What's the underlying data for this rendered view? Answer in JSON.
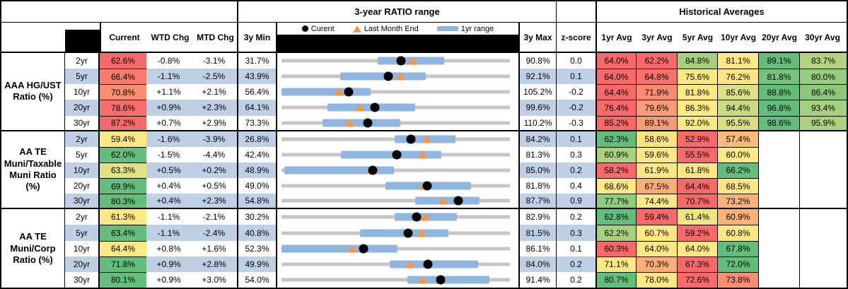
{
  "header": {
    "range_title": "3-year RATIO range",
    "historical_title": "Historical Averages",
    "value_cols": [
      "Current",
      "WTD Chg",
      "MTD Chg"
    ],
    "min_col": "3y Min",
    "max_col": "3y Max",
    "z_col": "z-score",
    "avg_cols": [
      "1yr Avg",
      "3yr Avg",
      "5yr Avg",
      "10yr Avg",
      "20yr Avg",
      "30yr Avg"
    ],
    "legend": {
      "current": "Curent",
      "last_month_end": "Last Month End",
      "range": "1yr range"
    }
  },
  "colors": {
    "stripe": "#BFD0E6",
    "bar_1yr": "#8FB5E1",
    "track": "#C6C6C6",
    "triangle_orange": "#F79646",
    "dot_black": "#000000",
    "heat_red": "#F8696B",
    "heat_yellow": "#FFE984",
    "heat_green": "#63BE7B"
  },
  "groups": [
    {
      "label": [
        "AAA HG/UST",
        "Ratio (%)"
      ],
      "rows": [
        {
          "tenor": "2yr",
          "current": "62.6%",
          "current_color": "#F8696B",
          "current_n": 62.6,
          "wtd": "-0.8%",
          "mtd": "-3.1%",
          "min": "31.7%",
          "min_n": 31.7,
          "max": "90.8%",
          "max_n": 90.8,
          "z": "0.0",
          "lme_n": 65.7,
          "bar": [
            56.5,
            73.7
          ],
          "avgs": [
            {
              "v": "64.0%",
              "c": "#F8696B"
            },
            {
              "v": "62.2%",
              "c": "#F8696B"
            },
            {
              "v": "84.8%",
              "c": "#A6D07F"
            },
            {
              "v": "81.1%",
              "c": "#FFE984"
            },
            {
              "v": "89.1%",
              "c": "#63BE7B"
            },
            {
              "v": "83.7%",
              "c": "#B5D47F"
            }
          ]
        },
        {
          "tenor": "5yr",
          "current": "66.4%",
          "current_color": "#F87B6E",
          "current_n": 66.4,
          "wtd": "-1.1%",
          "mtd": "-2.5%",
          "min": "43.9%",
          "min_n": 43.9,
          "max": "92.1%",
          "max_n": 92.1,
          "z": "0.1",
          "lme_n": 68.9,
          "bar": [
            56.3,
            74.3
          ],
          "avgs": [
            {
              "v": "64.0%",
              "c": "#F8696B"
            },
            {
              "v": "64.8%",
              "c": "#F9706D"
            },
            {
              "v": "75.6%",
              "c": "#FFE884"
            },
            {
              "v": "76.2%",
              "c": "#FEE483"
            },
            {
              "v": "81.8%",
              "c": "#73C37C"
            },
            {
              "v": "80.0%",
              "c": "#96CC7E"
            }
          ]
        },
        {
          "tenor": "10yr",
          "current": "70.8%",
          "current_color": "#F98E72",
          "current_n": 70.8,
          "wtd": "+1.1%",
          "mtd": "+2.1%",
          "min": "56.4%",
          "min_n": 56.4,
          "max": "105.2%",
          "max_n": 105.2,
          "z": "-0.2",
          "lme_n": 68.7,
          "bar": [
            56.4,
            75.4
          ],
          "avgs": [
            {
              "v": "64.4%",
              "c": "#F8696B"
            },
            {
              "v": "71.9%",
              "c": "#FA8B71"
            },
            {
              "v": "81.8%",
              "c": "#FFE984"
            },
            {
              "v": "85.6%",
              "c": "#DCE181"
            },
            {
              "v": "88.8%",
              "c": "#63BE7B"
            },
            {
              "v": "86.4%",
              "c": "#8CC97D"
            }
          ]
        },
        {
          "tenor": "20yr",
          "current": "78.6%",
          "current_color": "#F86E6C",
          "current_n": 78.6,
          "wtd": "+0.9%",
          "mtd": "+2.3%",
          "min": "64.1%",
          "min_n": 64.1,
          "max": "99.6%",
          "max_n": 99.6,
          "z": "-0.2",
          "lme_n": 76.3,
          "bar": [
            71.2,
            84.9
          ],
          "avgs": [
            {
              "v": "76.4%",
              "c": "#F8696B"
            },
            {
              "v": "79.6%",
              "c": "#FA9C75"
            },
            {
              "v": "86.3%",
              "c": "#FFE984"
            },
            {
              "v": "94.4%",
              "c": "#C9DB80"
            },
            {
              "v": "96.8%",
              "c": "#63BE7B"
            },
            {
              "v": "93.4%",
              "c": "#A5D07F"
            }
          ]
        },
        {
          "tenor": "30yr",
          "current": "87.2%",
          "current_color": "#F8696B",
          "current_n": 87.2,
          "wtd": "+0.7%",
          "mtd": "+2.9%",
          "min": "73.3%",
          "min_n": 73.3,
          "max": "110.2%",
          "max_n": 110.2,
          "z": "-0.3",
          "lme_n": 84.3,
          "bar": [
            79.9,
            92.5
          ],
          "avgs": [
            {
              "v": "85.2%",
              "c": "#F8696B"
            },
            {
              "v": "89.1%",
              "c": "#FA9B75"
            },
            {
              "v": "92.0%",
              "c": "#FFE984"
            },
            {
              "v": "95.5%",
              "c": "#DAE081"
            },
            {
              "v": "98.6%",
              "c": "#63BE7B"
            },
            {
              "v": "95.9%",
              "c": "#ACD27F"
            }
          ]
        }
      ]
    },
    {
      "label": [
        "AA TE",
        "Muni/Taxable",
        "Muni Ratio",
        "(%)"
      ],
      "rows": [
        {
          "tenor": "2yr",
          "current": "59.4%",
          "current_color": "#FFE783",
          "current_n": 59.4,
          "wtd": "-1.6%",
          "mtd": "-3.9%",
          "min": "26.8%",
          "min_n": 26.8,
          "max": "84.2%",
          "max_n": 84.2,
          "z": "0.1",
          "lme_n": 63.3,
          "bar": [
            55.2,
            70.6
          ],
          "avgs": [
            {
              "v": "62.3%",
              "c": "#63BE7B"
            },
            {
              "v": "58.6%",
              "c": "#FFE383"
            },
            {
              "v": "52.9%",
              "c": "#F8696B"
            },
            {
              "v": "57.4%",
              "c": "#FCBA7A"
            },
            {
              "v": "",
              "c": "#FFFFFF"
            },
            {
              "v": "",
              "c": "#FFFFFF"
            }
          ]
        },
        {
          "tenor": "5yr",
          "current": "62.0%",
          "current_color": "#63BE7B",
          "current_n": 62.0,
          "wtd": "-1.5%",
          "mtd": "-4.4%",
          "min": "42.4%",
          "min_n": 42.4,
          "max": "81.3%",
          "max_n": 81.3,
          "z": "0.3",
          "lme_n": 66.4,
          "bar": [
            52.5,
            69.6
          ],
          "avgs": [
            {
              "v": "60.9%",
              "c": "#ABD27F"
            },
            {
              "v": "59.6%",
              "c": "#FFE884"
            },
            {
              "v": "55.5%",
              "c": "#F8696B"
            },
            {
              "v": "60.0%",
              "c": "#FFE983"
            },
            {
              "v": "",
              "c": "#FFFFFF"
            },
            {
              "v": "",
              "c": "#FFFFFF"
            }
          ]
        },
        {
          "tenor": "10yr",
          "current": "63.3%",
          "current_color": "#E0E282",
          "current_n": 63.3,
          "wtd": "+0.5%",
          "mtd": "+0.2%",
          "min": "48.9%",
          "min_n": 48.9,
          "max": "85.0%",
          "max_n": 85.0,
          "z": "0.2",
          "lme_n": 63.1,
          "bar": [
            49.4,
            66.7
          ],
          "avgs": [
            {
              "v": "58.2%",
              "c": "#F8696B"
            },
            {
              "v": "61.9%",
              "c": "#FFE884"
            },
            {
              "v": "61.8%",
              "c": "#FEE783"
            },
            {
              "v": "66.2%",
              "c": "#63BE7B"
            },
            {
              "v": "",
              "c": "#FFFFFF"
            },
            {
              "v": "",
              "c": "#FFFFFF"
            }
          ]
        },
        {
          "tenor": "20yr",
          "current": "69.9%",
          "current_color": "#63BE7B",
          "current_n": 69.9,
          "wtd": "+0.4%",
          "mtd": "+0.5%",
          "min": "49.0%",
          "min_n": 49.0,
          "max": "81.8%",
          "max_n": 81.8,
          "z": "0.4",
          "lme_n": 69.4,
          "bar": [
            63.9,
            76.2
          ],
          "avgs": [
            {
              "v": "68.6%",
              "c": "#FFE883"
            },
            {
              "v": "67.5%",
              "c": "#FBAE78"
            },
            {
              "v": "64.4%",
              "c": "#F8696B"
            },
            {
              "v": "68.5%",
              "c": "#FEE583"
            },
            {
              "v": "",
              "c": "#FFFFFF"
            },
            {
              "v": "",
              "c": "#FFFFFF"
            }
          ]
        },
        {
          "tenor": "30yr",
          "current": "80.3%",
          "current_color": "#63BE7B",
          "current_n": 80.3,
          "wtd": "+0.4%",
          "mtd": "+2.3%",
          "min": "54.8%",
          "min_n": 54.8,
          "max": "87.7%",
          "max_n": 87.7,
          "z": "0.9",
          "lme_n": 78.0,
          "bar": [
            74.1,
            83.3
          ],
          "avgs": [
            {
              "v": "77.7%",
              "c": "#91CB7D"
            },
            {
              "v": "74.4%",
              "c": "#FFE884"
            },
            {
              "v": "70.7%",
              "c": "#F8696B"
            },
            {
              "v": "73.2%",
              "c": "#FBB179"
            },
            {
              "v": "",
              "c": "#FFFFFF"
            },
            {
              "v": "",
              "c": "#FFFFFF"
            }
          ]
        }
      ]
    },
    {
      "label": [
        "AA TE",
        "Muni/Corp",
        "Ratio (%)"
      ],
      "rows": [
        {
          "tenor": "2yr",
          "current": "61.3%",
          "current_color": "#FFE883",
          "current_n": 61.3,
          "wtd": "-1.1%",
          "mtd": "-2.1%",
          "min": "30.2%",
          "min_n": 30.2,
          "max": "82.9%",
          "max_n": 82.9,
          "z": "0.2",
          "lme_n": 63.4,
          "bar": [
            56.3,
            70.7
          ],
          "avgs": [
            {
              "v": "62.8%",
              "c": "#63BE7B"
            },
            {
              "v": "59.4%",
              "c": "#F8696B"
            },
            {
              "v": "61.4%",
              "c": "#EFE682"
            },
            {
              "v": "60.9%",
              "c": "#FBB177"
            },
            {
              "v": "",
              "c": "#FFFFFF"
            },
            {
              "v": "",
              "c": "#FFFFFF"
            }
          ]
        },
        {
          "tenor": "5yr",
          "current": "63.4%",
          "current_color": "#63BE7B",
          "current_n": 63.4,
          "wtd": "-1.1%",
          "mtd": "-2.4%",
          "min": "40.8%",
          "min_n": 40.8,
          "max": "81.5%",
          "max_n": 81.5,
          "z": "0.3",
          "lme_n": 65.8,
          "bar": [
            54.8,
            70.5
          ],
          "avgs": [
            {
              "v": "62.2%",
              "c": "#A8D17F"
            },
            {
              "v": "60.7%",
              "c": "#FFE883"
            },
            {
              "v": "59.2%",
              "c": "#F8696B"
            },
            {
              "v": "60.8%",
              "c": "#FEE683"
            },
            {
              "v": "",
              "c": "#FFFFFF"
            },
            {
              "v": "",
              "c": "#FFFFFF"
            }
          ]
        },
        {
          "tenor": "10yr",
          "current": "64.4%",
          "current_color": "#FFE984",
          "current_n": 64.4,
          "wtd": "+0.8%",
          "mtd": "+1.6%",
          "min": "52.3%",
          "min_n": 52.3,
          "max": "86.1%",
          "max_n": 86.1,
          "z": "0.1",
          "lme_n": 62.8,
          "bar": [
            52.3,
            69.5
          ],
          "avgs": [
            {
              "v": "60.3%",
              "c": "#F8696B"
            },
            {
              "v": "64.0%",
              "c": "#FFE884"
            },
            {
              "v": "64.0%",
              "c": "#FEE883"
            },
            {
              "v": "67.8%",
              "c": "#63BE7B"
            },
            {
              "v": "",
              "c": "#FFFFFF"
            },
            {
              "v": "",
              "c": "#FFFFFF"
            }
          ]
        },
        {
          "tenor": "20yr",
          "current": "71.8%",
          "current_color": "#63BE7B",
          "current_n": 71.8,
          "wtd": "+0.9%",
          "mtd": "+2.8%",
          "min": "49.9%",
          "min_n": 49.9,
          "max": "84.0%",
          "max_n": 84.0,
          "z": "0.2",
          "lme_n": 69.0,
          "bar": [
            66.1,
            79.2
          ],
          "avgs": [
            {
              "v": "71.1%",
              "c": "#FFE883"
            },
            {
              "v": "70.3%",
              "c": "#FBAE78"
            },
            {
              "v": "67.3%",
              "c": "#F8696B"
            },
            {
              "v": "72.0%",
              "c": "#63BE7B"
            },
            {
              "v": "",
              "c": "#FFFFFF"
            },
            {
              "v": "",
              "c": "#FFFFFF"
            }
          ]
        },
        {
          "tenor": "30yr",
          "current": "80.1%",
          "current_color": "#63BE7B",
          "current_n": 80.1,
          "wtd": "+0.9%",
          "mtd": "+3.0%",
          "min": "54.0%",
          "min_n": 54.0,
          "max": "91.4%",
          "max_n": 91.4,
          "z": "0.2",
          "lme_n": 77.1,
          "bar": [
            74.6,
            88.0
          ],
          "avgs": [
            {
              "v": "80.7%",
              "c": "#63BE7B"
            },
            {
              "v": "78.0%",
              "c": "#FFE884"
            },
            {
              "v": "72.6%",
              "c": "#F8696B"
            },
            {
              "v": "73.8%",
              "c": "#F98D72"
            },
            {
              "v": "",
              "c": "#FFFFFF"
            },
            {
              "v": "",
              "c": "#FFFFFF"
            }
          ]
        }
      ]
    }
  ],
  "chart_data": {
    "type": "table",
    "title": "3-year RATIO range with current, last-month-end and 1yr range markers",
    "legend": [
      "Curent",
      "Last Month End",
      "1yr range"
    ],
    "groups": [
      "AAA HG/UST Ratio (%)",
      "AA TE Muni/Taxable Muni Ratio (%)",
      "AA TE Muni/Corp Ratio (%)"
    ],
    "tenors": [
      "2yr",
      "5yr",
      "10yr",
      "20yr",
      "30yr"
    ],
    "series": [
      {
        "name": "AAA HG/UST",
        "min3y": [
          31.7,
          43.9,
          56.4,
          64.1,
          73.3
        ],
        "max3y": [
          90.8,
          92.1,
          105.2,
          99.6,
          110.2
        ],
        "current": [
          62.6,
          66.4,
          70.8,
          78.6,
          87.2
        ],
        "last_month_end": [
          65.7,
          68.9,
          68.7,
          76.3,
          84.3
        ],
        "range_1yr": [
          [
            56.5,
            73.7
          ],
          [
            56.3,
            74.3
          ],
          [
            56.4,
            75.4
          ],
          [
            71.2,
            84.9
          ],
          [
            79.9,
            92.5
          ]
        ]
      },
      {
        "name": "AA TE Muni/Taxable Muni",
        "min3y": [
          26.8,
          42.4,
          48.9,
          49.0,
          54.8
        ],
        "max3y": [
          84.2,
          81.3,
          85.0,
          81.8,
          87.7
        ],
        "current": [
          59.4,
          62.0,
          63.3,
          69.9,
          80.3
        ],
        "last_month_end": [
          63.3,
          66.4,
          63.1,
          69.4,
          78.0
        ],
        "range_1yr": [
          [
            55.2,
            70.6
          ],
          [
            52.5,
            69.6
          ],
          [
            49.4,
            66.7
          ],
          [
            63.9,
            76.2
          ],
          [
            74.1,
            83.3
          ]
        ]
      },
      {
        "name": "AA TE Muni/Corp",
        "min3y": [
          30.2,
          40.8,
          52.3,
          49.9,
          54.0
        ],
        "max3y": [
          82.9,
          81.5,
          86.1,
          84.0,
          91.4
        ],
        "current": [
          61.3,
          63.4,
          64.4,
          71.8,
          80.1
        ],
        "last_month_end": [
          63.4,
          65.8,
          62.8,
          69.0,
          77.1
        ],
        "range_1yr": [
          [
            56.3,
            70.7
          ],
          [
            54.8,
            70.5
          ],
          [
            52.3,
            69.5
          ],
          [
            66.1,
            79.2
          ],
          [
            74.6,
            88.0
          ]
        ]
      }
    ]
  }
}
